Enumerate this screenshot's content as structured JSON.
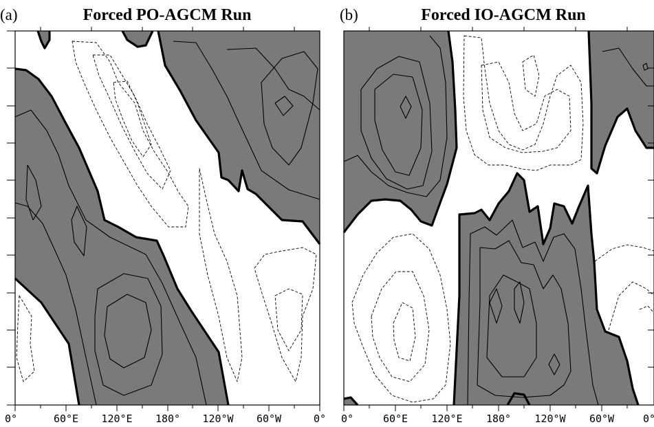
{
  "chart_data": [
    {
      "type": "contour",
      "panel_label": "(a)",
      "title": "Forced PO-AGCM Run",
      "x_tick_labels": [
        "0°",
        "60°E",
        "120°E",
        "180°",
        "120°W",
        "60°W",
        "0°"
      ],
      "y_tick_labels": [],
      "shading": {
        "positive": "#7a7a7a",
        "negative": "#ffffff"
      },
      "contours": {
        "zero_line": "thick solid",
        "positive": "thin solid",
        "negative": "thin dashed"
      }
    },
    {
      "type": "contour",
      "panel_label": "(b)",
      "title": "Forced IO-AGCM Run",
      "x_tick_labels": [
        "0°",
        "60°E",
        "120°E",
        "180°",
        "120°W",
        "60°W",
        "0°"
      ],
      "y_tick_labels": [],
      "shading": {
        "positive": "#7a7a7a",
        "negative": "#ffffff"
      },
      "contours": {
        "zero_line": "thick solid",
        "positive": "thin solid",
        "negative": "thin dashed"
      }
    }
  ]
}
